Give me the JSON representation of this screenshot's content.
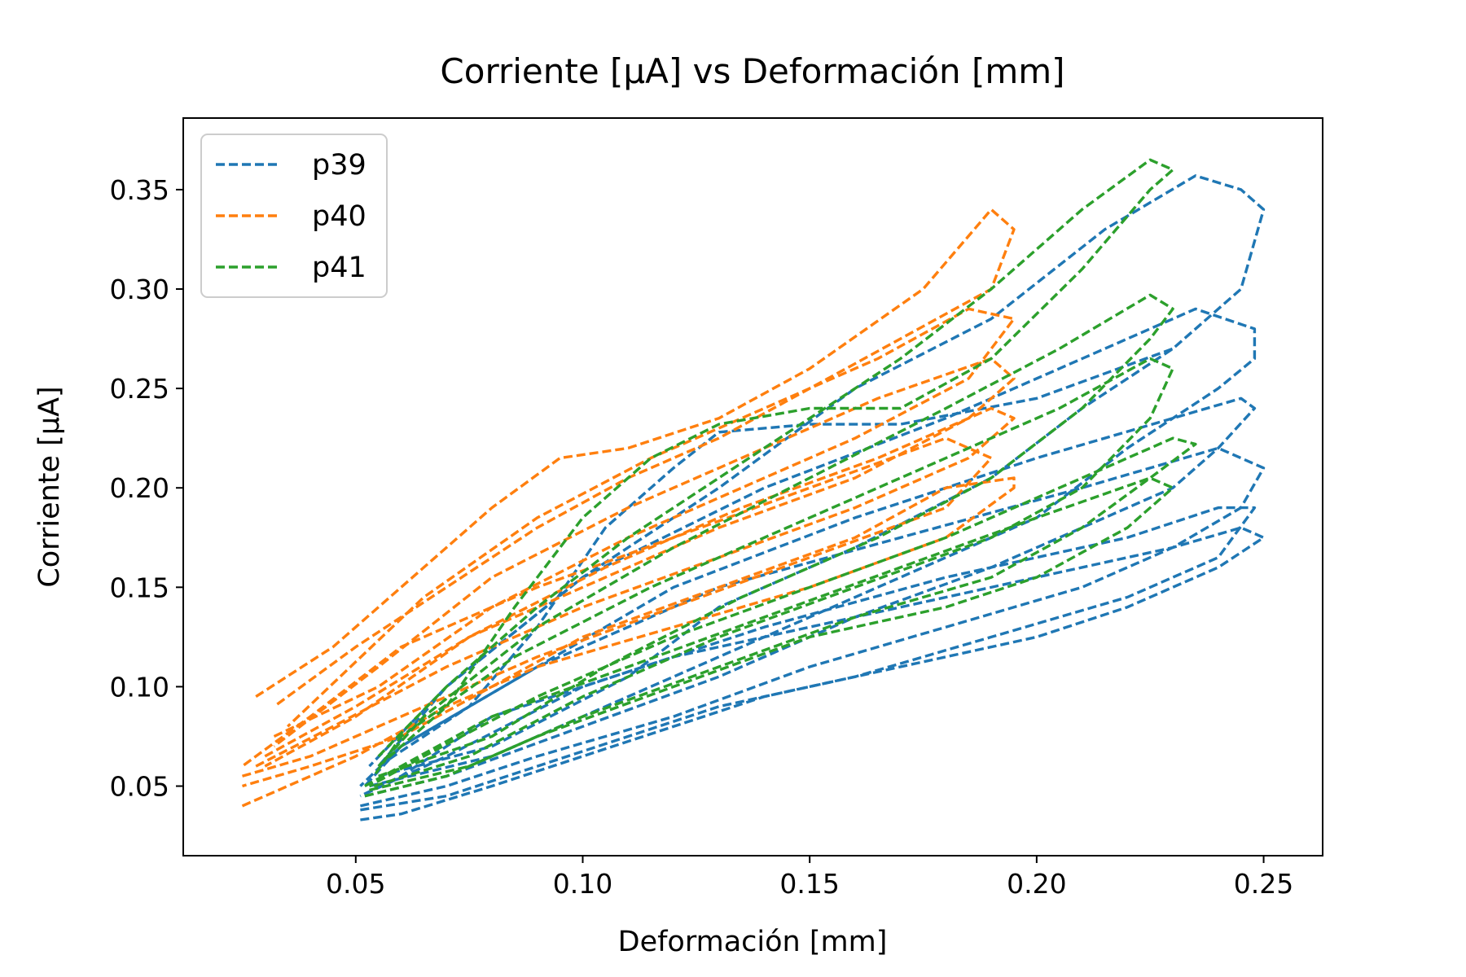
{
  "chart_data": {
    "type": "line",
    "title": "Corriente [μA] vs Deformación [mm]",
    "xlabel": "Deformación [mm]",
    "ylabel": "Corriente [μA]",
    "xlim": [
      0.012,
      0.263
    ],
    "ylim": [
      0.015,
      0.386
    ],
    "xticks": [
      0.05,
      0.1,
      0.15,
      0.2,
      0.25
    ],
    "xtick_labels": [
      "0.05",
      "0.10",
      "0.15",
      "0.20",
      "0.25"
    ],
    "yticks": [
      0.05,
      0.1,
      0.15,
      0.2,
      0.25,
      0.3,
      0.35
    ],
    "ytick_labels": [
      "0.05",
      "0.10",
      "0.15",
      "0.20",
      "0.25",
      "0.30",
      "0.35"
    ],
    "legend_position": "upper-left",
    "line_style": "dashed",
    "series": [
      {
        "name": "p39",
        "color": "#1f77b4",
        "loops": [
          {
            "x": [
              0.051,
              0.06,
              0.08,
              0.1,
              0.12,
              0.14,
              0.17,
              0.2,
              0.22,
              0.24,
              0.25,
              0.245,
              0.23,
              0.2,
              0.16,
              0.12,
              0.08,
              0.06,
              0.051
            ],
            "y": [
              0.033,
              0.036,
              0.05,
              0.065,
              0.08,
              0.095,
              0.11,
              0.125,
              0.14,
              0.16,
              0.175,
              0.18,
              0.17,
              0.155,
              0.135,
              0.115,
              0.085,
              0.055,
              0.045
            ]
          },
          {
            "x": [
              0.051,
              0.07,
              0.09,
              0.11,
              0.13,
              0.16,
              0.19,
              0.22,
              0.24,
              0.248,
              0.24,
              0.22,
              0.18,
              0.14,
              0.1,
              0.07,
              0.051
            ],
            "y": [
              0.038,
              0.045,
              0.06,
              0.075,
              0.09,
              0.105,
              0.125,
              0.145,
              0.165,
              0.19,
              0.19,
              0.175,
              0.155,
              0.13,
              0.1,
              0.065,
              0.045
            ]
          },
          {
            "x": [
              0.051,
              0.07,
              0.09,
              0.12,
              0.15,
              0.18,
              0.21,
              0.23,
              0.245,
              0.25,
              0.24,
              0.21,
              0.17,
              0.13,
              0.09,
              0.06,
              0.051
            ],
            "y": [
              0.04,
              0.05,
              0.065,
              0.085,
              0.11,
              0.13,
              0.15,
              0.17,
              0.19,
              0.21,
              0.22,
              0.2,
              0.175,
              0.15,
              0.11,
              0.07,
              0.05
            ]
          },
          {
            "x": [
              0.052,
              0.07,
              0.1,
              0.13,
              0.16,
              0.19,
              0.21,
              0.23,
              0.24,
              0.248,
              0.245,
              0.23,
              0.2,
              0.16,
              0.12,
              0.09,
              0.06,
              0.052
            ],
            "y": [
              0.045,
              0.055,
              0.08,
              0.105,
              0.135,
              0.16,
              0.18,
              0.2,
              0.22,
              0.24,
              0.245,
              0.235,
              0.215,
              0.185,
              0.15,
              0.11,
              0.07,
              0.05
            ]
          },
          {
            "x": [
              0.053,
              0.08,
              0.11,
              0.14,
              0.17,
              0.2,
              0.22,
              0.24,
              0.248,
              0.248,
              0.235,
              0.21,
              0.18,
              0.14,
              0.1,
              0.07,
              0.053
            ],
            "y": [
              0.05,
              0.065,
              0.095,
              0.125,
              0.155,
              0.185,
              0.22,
              0.25,
              0.265,
              0.28,
              0.29,
              0.265,
              0.235,
              0.2,
              0.155,
              0.1,
              0.06
            ]
          },
          {
            "x": [
              0.055,
              0.08,
              0.11,
              0.13,
              0.16,
              0.19,
              0.21,
              0.23,
              0.245,
              0.25,
              0.245,
              0.235,
              0.215,
              0.19,
              0.16,
              0.13,
              0.1,
              0.07,
              0.055
            ],
            "y": [
              0.055,
              0.07,
              0.105,
              0.14,
              0.17,
              0.205,
              0.24,
              0.27,
              0.3,
              0.34,
              0.35,
              0.357,
              0.33,
              0.285,
              0.25,
              0.2,
              0.155,
              0.1,
              0.06
            ]
          },
          {
            "x": [
              0.055,
              0.075,
              0.09,
              0.105,
              0.12,
              0.13,
              0.15,
              0.17,
              0.2,
              0.23
            ],
            "y": [
              0.06,
              0.09,
              0.13,
              0.18,
              0.21,
              0.228,
              0.232,
              0.232,
              0.245,
              0.27
            ]
          }
        ]
      },
      {
        "name": "p40",
        "color": "#ff7f0e",
        "loops": [
          {
            "x": [
              0.025,
              0.035,
              0.05,
              0.07,
              0.09,
              0.12,
              0.15,
              0.18,
              0.195,
              0.195,
              0.18,
              0.16,
              0.13,
              0.1,
              0.08,
              0.06,
              0.04,
              0.025
            ],
            "y": [
              0.04,
              0.05,
              0.065,
              0.09,
              0.11,
              0.13,
              0.15,
              0.175,
              0.2,
              0.205,
              0.2,
              0.175,
              0.15,
              0.125,
              0.1,
              0.075,
              0.06,
              0.05
            ]
          },
          {
            "x": [
              0.025,
              0.04,
              0.06,
              0.09,
              0.12,
              0.15,
              0.18,
              0.19,
              0.18,
              0.15,
              0.12,
              0.09,
              0.06,
              0.04,
              0.025
            ],
            "y": [
              0.055,
              0.065,
              0.085,
              0.115,
              0.14,
              0.165,
              0.19,
              0.215,
              0.225,
              0.2,
              0.175,
              0.15,
              0.12,
              0.085,
              0.06
            ]
          },
          {
            "x": [
              0.028,
              0.045,
              0.07,
              0.1,
              0.13,
              0.16,
              0.185,
              0.195,
              0.19,
              0.165,
              0.135,
              0.105,
              0.075,
              0.05,
              0.03
            ],
            "y": [
              0.06,
              0.08,
              0.11,
              0.14,
              0.165,
              0.19,
              0.215,
              0.235,
              0.24,
              0.215,
              0.19,
              0.16,
              0.125,
              0.085,
              0.06
            ]
          },
          {
            "x": [
              0.03,
              0.05,
              0.075,
              0.105,
              0.13,
              0.16,
              0.185,
              0.195,
              0.19,
              0.165,
              0.14,
              0.11,
              0.08,
              0.055,
              0.032
            ],
            "y": [
              0.065,
              0.09,
              0.125,
              0.155,
              0.18,
              0.205,
              0.235,
              0.255,
              0.265,
              0.245,
              0.22,
              0.19,
              0.155,
              0.11,
              0.07
            ]
          },
          {
            "x": [
              0.032,
              0.055,
              0.08,
              0.11,
              0.135,
              0.16,
              0.185,
              0.195,
              0.185,
              0.165,
              0.14,
              0.115,
              0.09,
              0.065,
              0.035
            ],
            "y": [
              0.075,
              0.1,
              0.14,
              0.175,
              0.2,
              0.225,
              0.255,
              0.285,
              0.29,
              0.265,
              0.24,
              0.215,
              0.185,
              0.145,
              0.08
            ]
          },
          {
            "x": [
              0.028,
              0.045,
              0.065,
              0.08,
              0.095,
              0.11,
              0.13,
              0.15,
              0.175,
              0.19,
              0.195,
              0.19,
              0.17,
              0.15,
              0.13,
              0.11,
              0.09,
              0.07,
              0.05,
              0.032
            ],
            "y": [
              0.095,
              0.12,
              0.16,
              0.19,
              0.215,
              0.22,
              0.235,
              0.26,
              0.3,
              0.34,
              0.33,
              0.3,
              0.275,
              0.25,
              0.225,
              0.205,
              0.18,
              0.15,
              0.12,
              0.09
            ]
          }
        ]
      },
      {
        "name": "p41",
        "color": "#2ca02c",
        "loops": [
          {
            "x": [
              0.052,
              0.07,
              0.09,
              0.12,
              0.15,
              0.18,
              0.2,
              0.22,
              0.23,
              0.225,
              0.2,
              0.17,
              0.14,
              0.11,
              0.08,
              0.06,
              0.052
            ],
            "y": [
              0.045,
              0.055,
              0.075,
              0.1,
              0.125,
              0.14,
              0.155,
              0.18,
              0.2,
              0.205,
              0.185,
              0.16,
              0.135,
              0.11,
              0.085,
              0.06,
              0.05
            ]
          },
          {
            "x": [
              0.053,
              0.075,
              0.1,
              0.13,
              0.16,
              0.19,
              0.21,
              0.225,
              0.235,
              0.23,
              0.21,
              0.18,
              0.15,
              0.12,
              0.09,
              0.065,
              0.053
            ],
            "y": [
              0.048,
              0.06,
              0.085,
              0.11,
              0.135,
              0.155,
              0.18,
              0.205,
              0.222,
              0.225,
              0.205,
              0.175,
              0.15,
              0.125,
              0.095,
              0.065,
              0.05
            ]
          },
          {
            "x": [
              0.054,
              0.075,
              0.1,
              0.13,
              0.16,
              0.19,
              0.21,
              0.225,
              0.23,
              0.225,
              0.205,
              0.175,
              0.145,
              0.115,
              0.085,
              0.06,
              0.054
            ],
            "y": [
              0.05,
              0.065,
              0.095,
              0.125,
              0.15,
              0.175,
              0.2,
              0.235,
              0.26,
              0.265,
              0.24,
              0.21,
              0.18,
              0.15,
              0.115,
              0.075,
              0.055
            ]
          },
          {
            "x": [
              0.055,
              0.08,
              0.105,
              0.135,
              0.165,
              0.19,
              0.21,
              0.225,
              0.23,
              0.225,
              0.205,
              0.18,
              0.15,
              0.12,
              0.09,
              0.065,
              0.055
            ],
            "y": [
              0.055,
              0.075,
              0.11,
              0.145,
              0.175,
              0.205,
              0.24,
              0.275,
              0.29,
              0.297,
              0.27,
              0.24,
              0.205,
              0.17,
              0.13,
              0.085,
              0.06
            ]
          },
          {
            "x": [
              0.055,
              0.07,
              0.085,
              0.1,
              0.115,
              0.13,
              0.15,
              0.17,
              0.19,
              0.21,
              0.225,
              0.23,
              0.225,
              0.21,
              0.19,
              0.17,
              0.15,
              0.13,
              0.11,
              0.09,
              0.07,
              0.055
            ],
            "y": [
              0.06,
              0.09,
              0.14,
              0.185,
              0.215,
              0.232,
              0.24,
              0.24,
              0.265,
              0.31,
              0.35,
              0.36,
              0.365,
              0.34,
              0.3,
              0.265,
              0.235,
              0.205,
              0.175,
              0.14,
              0.1,
              0.065
            ]
          }
        ]
      }
    ]
  }
}
